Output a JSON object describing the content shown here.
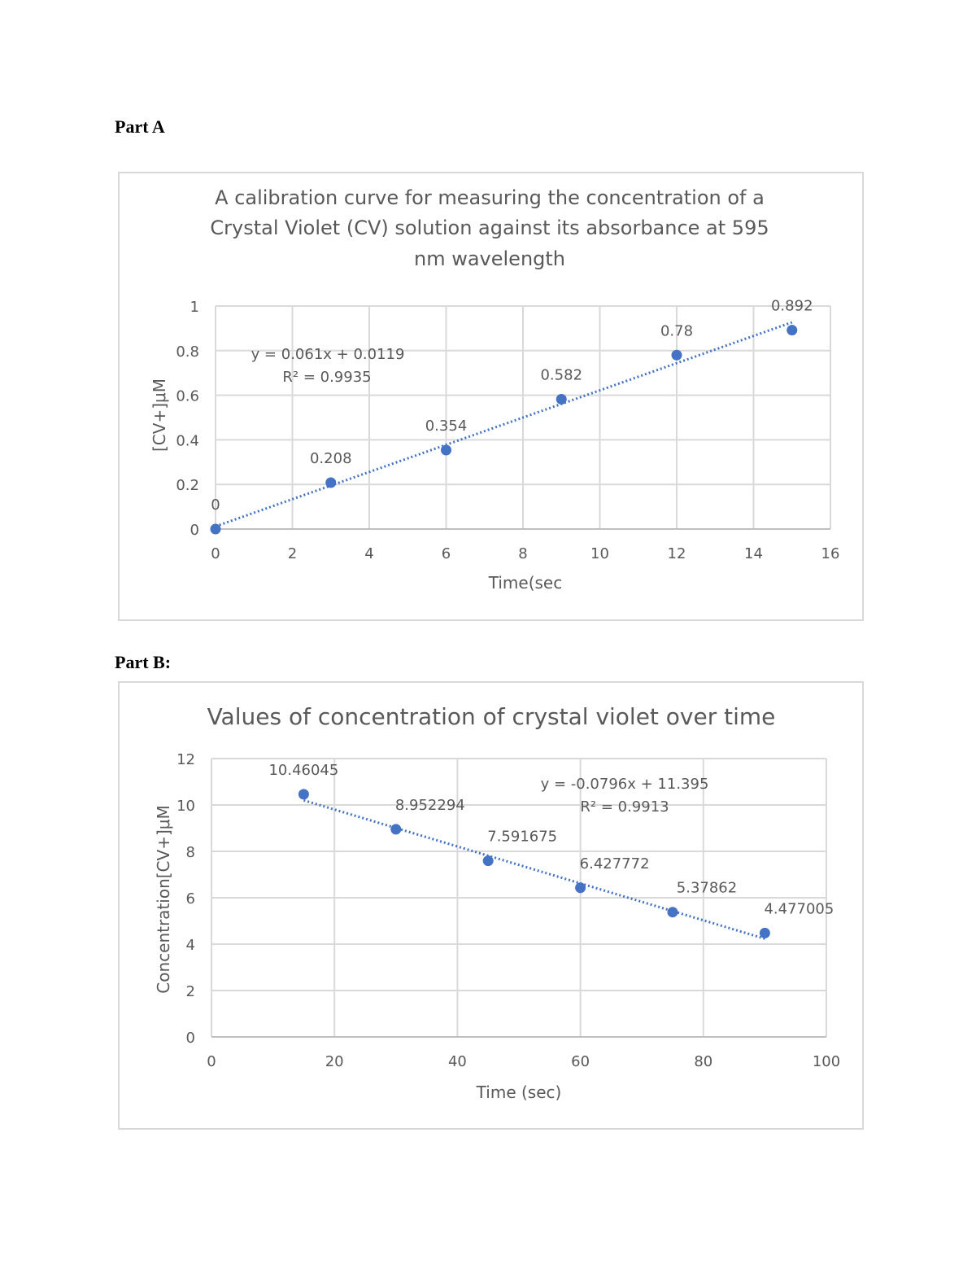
{
  "headings": {
    "part_a": "Part A",
    "part_b": "Part B:"
  },
  "colors": {
    "series": "#4472C4",
    "grid": "#d9d9d9",
    "text": "#595959"
  },
  "chart_data": [
    {
      "type": "scatter",
      "title_lines": [
        "A calibration curve for measuring the concentration of a",
        "Crystal Violet (CV) solution against its absorbance at 595",
        "nm wavelength"
      ],
      "xlabel": "Time(sec",
      "ylabel": "[CV+]μM",
      "xlim": [
        0,
        16
      ],
      "ylim": [
        0,
        1
      ],
      "xticks": [
        0,
        2,
        4,
        6,
        8,
        10,
        12,
        14,
        16
      ],
      "yticks": [
        0,
        0.2,
        0.4,
        0.6,
        0.8,
        1
      ],
      "ytick_labels": [
        "0",
        "0.2",
        "0.4",
        "0.6",
        "0.8",
        "1"
      ],
      "grid": true,
      "x": [
        0,
        3,
        6,
        9,
        12,
        15
      ],
      "y": [
        0,
        0.208,
        0.354,
        0.582,
        0.78,
        0.892
      ],
      "data_labels": [
        "0",
        "0.208",
        "0.354",
        "0.582",
        "0.78",
        "0.892"
      ],
      "trendline": {
        "type": "linear",
        "slope": 0.061,
        "intercept": 0.0119,
        "style": "dotted",
        "equation": "y = 0.061x + 0.0119",
        "r2": "R² = 0.9935"
      }
    },
    {
      "type": "scatter",
      "title_lines": [
        "Values of concentration of crystal violet over time"
      ],
      "xlabel": "Time (sec)",
      "ylabel": "Concentration[CV+]μM",
      "xlim": [
        0,
        100
      ],
      "ylim": [
        0,
        12
      ],
      "xticks": [
        0,
        20,
        40,
        60,
        80,
        100
      ],
      "yticks": [
        0,
        2,
        4,
        6,
        8,
        10,
        12
      ],
      "ytick_labels": [
        "0",
        "2",
        "4",
        "6",
        "8",
        "10",
        "12"
      ],
      "grid": true,
      "x": [
        15,
        30,
        45,
        60,
        75,
        90
      ],
      "y": [
        10.46045,
        8.952294,
        7.591675,
        6.427772,
        5.37862,
        4.477005
      ],
      "data_labels": [
        "10.46045",
        "8.952294",
        "7.591675",
        "6.427772",
        "5.37862",
        "4.477005"
      ],
      "trendline": {
        "type": "linear",
        "slope": -0.0796,
        "intercept": 11.395,
        "style": "dotted",
        "equation": "y = -0.0796x + 11.395",
        "r2": "R² = 0.9913"
      }
    }
  ]
}
